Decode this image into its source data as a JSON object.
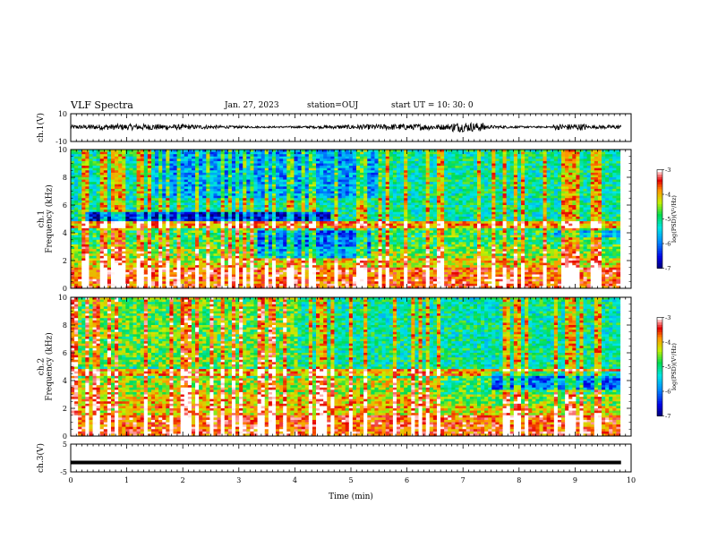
{
  "header": {
    "title": "VLF Spectra",
    "date": "Jan. 27, 2023",
    "station": "station=OUJ",
    "start": "start  UT =   10: 30: 0"
  },
  "chart_data": [
    {
      "type": "line",
      "name": "ch1-waveform",
      "ylabel": "ch.1(V)",
      "ylim": [
        -10,
        10
      ],
      "yticks": [
        "10",
        "-10"
      ],
      "xlim": [
        0,
        10
      ]
    },
    {
      "type": "heatmap",
      "name": "ch1-spectrogram",
      "ylabel_line1": "ch.1",
      "ylabel_line2": "Frequency (kHz)",
      "ylim": [
        0,
        10
      ],
      "yticks": [
        "0",
        "2",
        "4",
        "6",
        "8",
        "10"
      ],
      "xlim": [
        0,
        9.8
      ],
      "colorbar": {
        "label": "log(PSD)(V²/Hz)",
        "range": [
          -7,
          -3
        ],
        "ticks": [
          "-3",
          "-4",
          "-5",
          "-6",
          "-7"
        ]
      }
    },
    {
      "type": "heatmap",
      "name": "ch2-spectrogram",
      "ylabel_line1": "ch.2",
      "ylabel_line2": "Frequency (kHz)",
      "ylim": [
        0,
        10
      ],
      "yticks": [
        "0",
        "2",
        "4",
        "6",
        "8",
        "10"
      ],
      "xlim": [
        0,
        9.8
      ],
      "colorbar": {
        "label": "log(PSD)(V²/Hz)",
        "range": [
          -7,
          -3
        ],
        "ticks": [
          "-3",
          "-4",
          "-5",
          "-6",
          "-7"
        ]
      }
    },
    {
      "type": "line",
      "name": "ch3-waveform",
      "ylabel": "ch.3(V)",
      "ylim": [
        -5,
        5
      ],
      "yticks": [
        "5",
        "-5"
      ],
      "constant_value": -1.6,
      "xlim": [
        0,
        10
      ]
    }
  ],
  "xaxis": {
    "label": "Time (min)",
    "range": [
      0,
      10
    ],
    "ticks": [
      "0",
      "1",
      "2",
      "3",
      "4",
      "5",
      "6",
      "7",
      "8",
      "9",
      "10"
    ]
  },
  "colors": {
    "axis": "#000000",
    "background": "#ffffff"
  }
}
